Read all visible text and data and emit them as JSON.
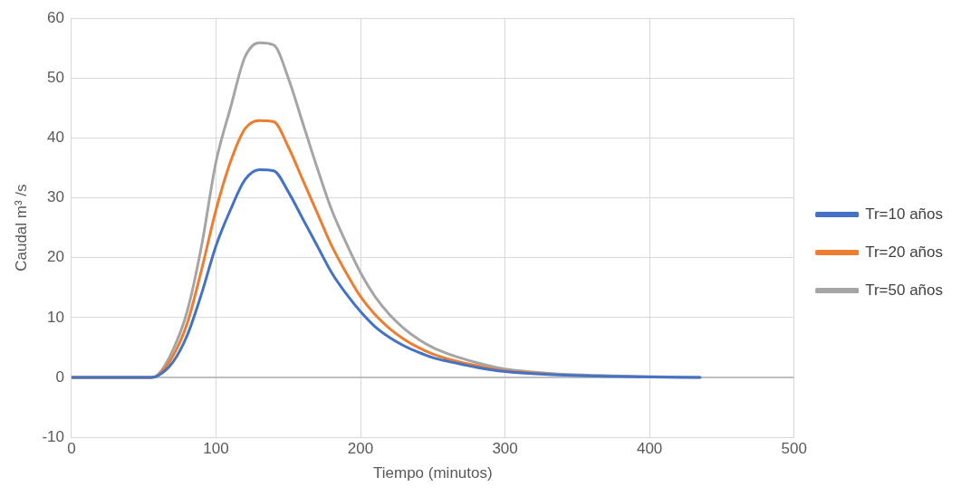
{
  "chart_data": {
    "type": "line",
    "xlabel": "Tiempo (minutos)",
    "ylabel": "Caudal m³ /s",
    "x": [
      0,
      55,
      60,
      70,
      80,
      90,
      100,
      110,
      120,
      130,
      140,
      150,
      160,
      170,
      180,
      190,
      200,
      210,
      220,
      230,
      240,
      250,
      260,
      270,
      280,
      290,
      300,
      330,
      370,
      435
    ],
    "series": [
      {
        "name": "Tr=10 años",
        "color": "#4472c4",
        "values": [
          0,
          0,
          0.3,
          2.5,
          7,
          14,
          22,
          28,
          33,
          34.7,
          34.5,
          31,
          26.5,
          22,
          17.5,
          14,
          11,
          8.5,
          6.7,
          5.3,
          4.2,
          3.3,
          2.7,
          2.2,
          1.7,
          1.3,
          1,
          0.5,
          0.2,
          0
        ]
      },
      {
        "name": "Tr=20 años",
        "color": "#ed7d31",
        "values": [
          0,
          0,
          0.4,
          3.5,
          9,
          18,
          28,
          36,
          41.5,
          42.9,
          42.7,
          38.5,
          33,
          27.5,
          22,
          17.5,
          13.5,
          10.5,
          8.2,
          6.4,
          5,
          3.9,
          3.1,
          2.5,
          2,
          1.5,
          1.1,
          0.6,
          null,
          null
        ]
      },
      {
        "name": "Tr=50 años",
        "color": "#a5a5a5",
        "values": [
          0,
          0,
          0.5,
          4.5,
          11,
          22,
          36,
          45,
          53.5,
          55.9,
          55.5,
          50,
          42.5,
          35,
          28,
          22.5,
          17.5,
          13.5,
          10.5,
          8.2,
          6.4,
          5,
          4,
          3.2,
          2.5,
          1.9,
          1.4,
          0.7,
          0.3,
          0
        ]
      }
    ],
    "xlim": [
      0,
      500
    ],
    "xticks": [
      0,
      100,
      200,
      300,
      400,
      500
    ],
    "ylim": [
      -10,
      60
    ],
    "yticks": [
      -10,
      0,
      10,
      20,
      30,
      40,
      50,
      60
    ],
    "grid": true,
    "legend": "right",
    "marker": "none",
    "line_style": "solid"
  }
}
